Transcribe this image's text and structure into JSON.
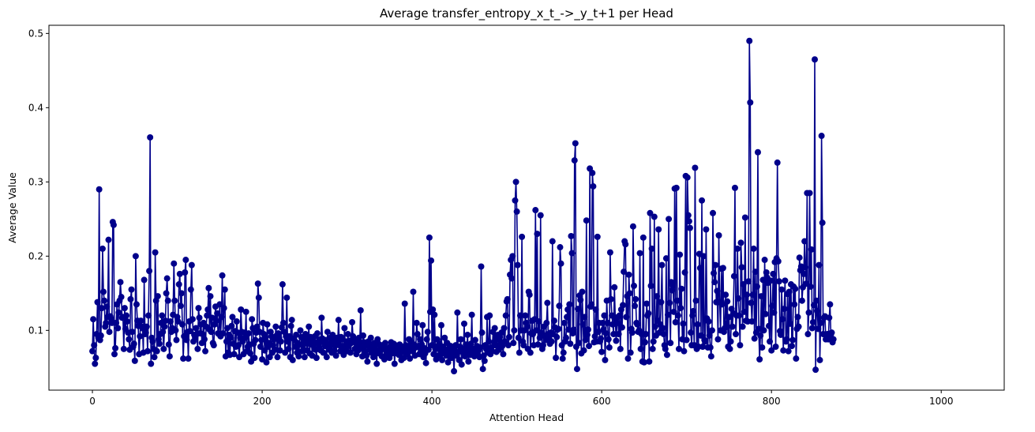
{
  "chart_data": {
    "type": "line",
    "title": "Average transfer_entropy_x_t_->_y_t+1 per Head",
    "xlabel": "Attention Head",
    "ylabel": "Average Value",
    "xlim": [
      -51.2,
      1074.2
    ],
    "ylim": [
      0.0195,
      0.511
    ],
    "xticks": [
      0,
      200,
      400,
      600,
      800,
      1000
    ],
    "yticks": [
      0.1,
      0.2,
      0.3,
      0.4,
      0.5
    ],
    "grid": false,
    "series": [
      {
        "color": "#00008B",
        "marker": "circle",
        "x_start": 0,
        "x_step": 1,
        "values": [
          0.072,
          0.115,
          0.08,
          0.055,
          0.063,
          0.095,
          0.138,
          0.09,
          0.29,
          0.087,
          0.093,
          0.13,
          0.21,
          0.152,
          0.14,
          0.105,
          0.11,
          0.132,
          0.118,
          0.222,
          0.098,
          0.119,
          0.116,
          0.11,
          0.246,
          0.242,
          0.068,
          0.076,
          0.11,
          0.135,
          0.103,
          0.124,
          0.14,
          0.165,
          0.145,
          0.117,
          0.118,
          0.075,
          0.13,
          0.102,
          0.12,
          0.112,
          0.097,
          0.088,
          0.074,
          0.142,
          0.155,
          0.098,
          0.078,
          0.082,
          0.059,
          0.2,
          0.135,
          0.113,
          0.106,
          0.068,
          0.092,
          0.113,
          0.105,
          0.103,
          0.07,
          0.168,
          0.095,
          0.097,
          0.105,
          0.072,
          0.12,
          0.18,
          0.36,
          0.055,
          0.09,
          0.085,
          0.075,
          0.064,
          0.205,
          0.14,
          0.072,
          0.146,
          0.088,
          0.082,
          0.095,
          0.11,
          0.12,
          0.098,
          0.075,
          0.105,
          0.113,
          0.15,
          0.17,
          0.14,
          0.081,
          0.065,
          0.112,
          0.098,
          0.103,
          0.121,
          0.19,
          0.14,
          0.1,
          0.087,
          0.118,
          0.112,
          0.162,
          0.176,
          0.133,
          0.15,
          0.108,
          0.062,
          0.092,
          0.178,
          0.195,
          0.087,
          0.098,
          0.062,
          0.112,
          0.099,
          0.155,
          0.188,
          0.115,
          0.085,
          0.094,
          0.09,
          0.103,
          0.095,
          0.075,
          0.13,
          0.117,
          0.096,
          0.108,
          0.083,
          0.095,
          0.11,
          0.088,
          0.072,
          0.105,
          0.12,
          0.128,
          0.157,
          0.101,
          0.146,
          0.098,
          0.117,
          0.083,
          0.08,
          0.108,
          0.132,
          0.113,
          0.123,
          0.096,
          0.095,
          0.135,
          0.092,
          0.118,
          0.174,
          0.096,
          0.13,
          0.155,
          0.065,
          0.085,
          0.103,
          0.07,
          0.094,
          0.067,
          0.09,
          0.106,
          0.118,
          0.082,
          0.068,
          0.099,
          0.078,
          0.112,
          0.097,
          0.08,
          0.064,
          0.09,
          0.128,
          0.098,
          0.085,
          0.068,
          0.097,
          0.09,
          0.125,
          0.072,
          0.078,
          0.096,
          0.081,
          0.069,
          0.058,
          0.115,
          0.103,
          0.082,
          0.063,
          0.087,
          0.097,
          0.105,
          0.163,
          0.144,
          0.098,
          0.078,
          0.087,
          0.061,
          0.11,
          0.095,
          0.073,
          0.09,
          0.057,
          0.108,
          0.078,
          0.083,
          0.064,
          0.098,
          0.092,
          0.07,
          0.08,
          0.088,
          0.074,
          0.105,
          0.093,
          0.064,
          0.096,
          0.09,
          0.073,
          0.085,
          0.104,
          0.162,
          0.11,
          0.098,
          0.07,
          0.092,
          0.144,
          0.085,
          0.075,
          0.092,
          0.064,
          0.106,
          0.114,
          0.06,
          0.089,
          0.087,
          0.078,
          0.094,
          0.07,
          0.083,
          0.065,
          0.081,
          0.1,
          0.091,
          0.072,
          0.079,
          0.086,
          0.064,
          0.095,
          0.088,
          0.073,
          0.082,
          0.105,
          0.069,
          0.091,
          0.087,
          0.066,
          0.08,
          0.085,
          0.092,
          0.074,
          0.063,
          0.096,
          0.083,
          0.078,
          0.088,
          0.073,
          0.117,
          0.089,
          0.07,
          0.083,
          0.079,
          0.087,
          0.064,
          0.098,
          0.082,
          0.074,
          0.09,
          0.081,
          0.07,
          0.094,
          0.086,
          0.073,
          0.079,
          0.066,
          0.09,
          0.085,
          0.114,
          0.08,
          0.072,
          0.091,
          0.088,
          0.076,
          0.067,
          0.103,
          0.08,
          0.085,
          0.072,
          0.095,
          0.079,
          0.086,
          0.07,
          0.083,
          0.111,
          0.092,
          0.088,
          0.075,
          0.086,
          0.068,
          0.08,
          0.073,
          0.09,
          0.084,
          0.127,
          0.077,
          0.065,
          0.093,
          0.084,
          0.072,
          0.079,
          0.066,
          0.058,
          0.085,
          0.081,
          0.074,
          0.09,
          0.07,
          0.077,
          0.064,
          0.083,
          0.078,
          0.071,
          0.055,
          0.088,
          0.082,
          0.069,
          0.074,
          0.08,
          0.065,
          0.075,
          0.079,
          0.061,
          0.083,
          0.076,
          0.068,
          0.072,
          0.071,
          0.063,
          0.078,
          0.084,
          0.069,
          0.075,
          0.082,
          0.055,
          0.08,
          0.073,
          0.069,
          0.076,
          0.067,
          0.081,
          0.07,
          0.06,
          0.077,
          0.074,
          0.063,
          0.136,
          0.08,
          0.068,
          0.075,
          0.071,
          0.088,
          0.062,
          0.085,
          0.079,
          0.072,
          0.152,
          0.081,
          0.066,
          0.077,
          0.11,
          0.095,
          0.079,
          0.068,
          0.088,
          0.073,
          0.081,
          0.107,
          0.064,
          0.076,
          0.069,
          0.056,
          0.088,
          0.098,
          0.074,
          0.225,
          0.125,
          0.194,
          0.08,
          0.128,
          0.068,
          0.121,
          0.075,
          0.061,
          0.088,
          0.079,
          0.066,
          0.082,
          0.073,
          0.107,
          0.06,
          0.078,
          0.069,
          0.09,
          0.074,
          0.066,
          0.083,
          0.057,
          0.075,
          0.07,
          0.079,
          0.063,
          0.077,
          0.068,
          0.045,
          0.072,
          0.08,
          0.066,
          0.124,
          0.071,
          0.06,
          0.078,
          0.088,
          0.054,
          0.074,
          0.069,
          0.109,
          0.065,
          0.081,
          0.072,
          0.094,
          0.058,
          0.076,
          0.067,
          0.082,
          0.121,
          0.07,
          0.075,
          0.065,
          0.087,
          0.071,
          0.079,
          0.068,
          0.073,
          0.064,
          0.077,
          0.186,
          0.097,
          0.048,
          0.066,
          0.059,
          0.08,
          0.075,
          0.118,
          0.07,
          0.085,
          0.12,
          0.068,
          0.077,
          0.072,
          0.098,
          0.084,
          0.103,
          0.08,
          0.071,
          0.088,
          0.094,
          0.074,
          0.091,
          0.082,
          0.097,
          0.079,
          0.068,
          0.103,
          0.085,
          0.12,
          0.139,
          0.142,
          0.08,
          0.091,
          0.175,
          0.195,
          0.17,
          0.2,
          0.083,
          0.1,
          0.275,
          0.3,
          0.26,
          0.188,
          0.09,
          0.07,
          0.12,
          0.1,
          0.226,
          0.085,
          0.08,
          0.1,
          0.12,
          0.11,
          0.105,
          0.075,
          0.152,
          0.148,
          0.07,
          0.096,
          0.113,
          0.095,
          0.08,
          0.115,
          0.262,
          0.1,
          0.23,
          0.081,
          0.112,
          0.09,
          0.255,
          0.097,
          0.075,
          0.08,
          0.105,
          0.093,
          0.087,
          0.11,
          0.137,
          0.095,
          0.09,
          0.082,
          0.097,
          0.085,
          0.22,
          0.095,
          0.113,
          0.104,
          0.063,
          0.091,
          0.101,
          0.102,
          0.133,
          0.212,
          0.19,
          0.08,
          0.062,
          0.07,
          0.11,
          0.085,
          0.09,
          0.118,
          0.128,
          0.101,
          0.135,
          0.082,
          0.227,
          0.204,
          0.096,
          0.101,
          0.329,
          0.352,
          0.078,
          0.048,
          0.129,
          0.083,
          0.147,
          0.141,
          0.069,
          0.152,
          0.108,
          0.073,
          0.118,
          0.087,
          0.248,
          0.094,
          0.101,
          0.079,
          0.318,
          0.132,
          0.135,
          0.312,
          0.294,
          0.084,
          0.092,
          0.128,
          0.085,
          0.226,
          0.098,
          0.11,
          0.085,
          0.089,
          0.071,
          0.11,
          0.101,
          0.12,
          0.06,
          0.096,
          0.14,
          0.11,
          0.088,
          0.077,
          0.205,
          0.142,
          0.12,
          0.108,
          0.095,
          0.158,
          0.116,
          0.086,
          0.11,
          0.118,
          0.095,
          0.12,
          0.075,
          0.128,
          0.104,
          0.134,
          0.179,
          0.22,
          0.216,
          0.118,
          0.146,
          0.062,
          0.175,
          0.15,
          0.07,
          0.102,
          0.097,
          0.24,
          0.16,
          0.133,
          0.142,
          0.11,
          0.108,
          0.098,
          0.1,
          0.204,
          0.075,
          0.095,
          0.058,
          0.225,
          0.057,
          0.084,
          0.095,
          0.136,
          0.12,
          0.123,
          0.058,
          0.258,
          0.16,
          0.21,
          0.075,
          0.085,
          0.253,
          0.105,
          0.093,
          0.146,
          0.113,
          0.236,
          0.097,
          0.108,
          0.138,
          0.188,
          0.103,
          0.095,
          0.08,
          0.075,
          0.197,
          0.067,
          0.121,
          0.25,
          0.137,
          0.083,
          0.165,
          0.154,
          0.16,
          0.125,
          0.291,
          0.111,
          0.292,
          0.14,
          0.12,
          0.075,
          0.202,
          0.13,
          0.156,
          0.088,
          0.109,
          0.072,
          0.178,
          0.308,
          0.087,
          0.306,
          0.255,
          0.247,
          0.238,
          0.097,
          0.08,
          0.12,
          0.126,
          0.08,
          0.319,
          0.14,
          0.075,
          0.108,
          0.078,
          0.203,
          0.184,
          0.093,
          0.275,
          0.078,
          0.2,
          0.087,
          0.085,
          0.236,
          0.116,
          0.077,
          0.112,
          0.093,
          0.077,
          0.065,
          0.1,
          0.258,
          0.177,
          0.165,
          0.188,
          0.138,
          0.153,
          0.088,
          0.228,
          0.138,
          0.1,
          0.183,
          0.135,
          0.184,
          0.098,
          0.103,
          0.148,
          0.109,
          0.139,
          0.078,
          0.118,
          0.075,
          0.085,
          0.129,
          0.105,
          0.123,
          0.173,
          0.292,
          0.095,
          0.12,
          0.21,
          0.143,
          0.12,
          0.08,
          0.218,
          0.185,
          0.105,
          0.162,
          0.125,
          0.252,
          0.113,
          0.148,
          0.112,
          0.166,
          0.49,
          0.407,
          0.137,
          0.112,
          0.148,
          0.21,
          0.089,
          0.179,
          0.097,
          0.159,
          0.34,
          0.102,
          0.061,
          0.093,
          0.146,
          0.077,
          0.168,
          0.1,
          0.195,
          0.122,
          0.178,
          0.171,
          0.164,
          0.106,
          0.085,
          0.167,
          0.073,
          0.133,
          0.176,
          0.124,
          0.192,
          0.078,
          0.197,
          0.326,
          0.193,
          0.166,
          0.099,
          0.094,
          0.155,
          0.115,
          0.073,
          0.129,
          0.167,
          0.085,
          0.088,
          0.149,
          0.072,
          0.152,
          0.109,
          0.162,
          0.079,
          0.087,
          0.159,
          0.135,
          0.156,
          0.062,
          0.102,
          0.118,
          0.105,
          0.198,
          0.181,
          0.186,
          0.14,
          0.158,
          0.176,
          0.22,
          0.185,
          0.163,
          0.285,
          0.095,
          0.124,
          0.285,
          0.159,
          0.209,
          0.103,
          0.111,
          0.134,
          0.465,
          0.047,
          0.14,
          0.126,
          0.102,
          0.188,
          0.06,
          0.11,
          0.362,
          0.245,
          0.095,
          0.117,
          0.119,
          0.088,
          0.093,
          0.095,
          0.088,
          0.117,
          0.135,
          0.094,
          0.097,
          0.084,
          0.088
        ]
      }
    ]
  }
}
